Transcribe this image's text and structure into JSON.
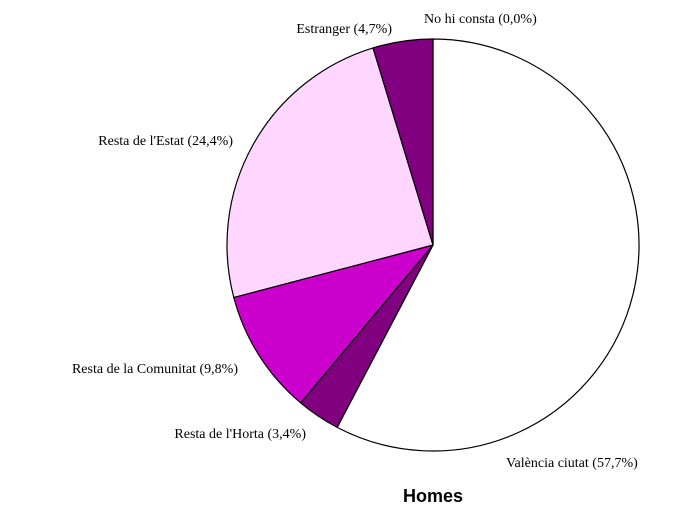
{
  "chart_data": {
    "type": "pie",
    "title": "Homes",
    "start_angle_deg": 0,
    "direction": "clockwise",
    "slices": [
      {
        "label": "València ciutat (57,7%)",
        "value": 57.7,
        "color": "#ffffff"
      },
      {
        "label": "Resta de l'Horta (3,4%)",
        "value": 3.4,
        "color": "#800080"
      },
      {
        "label": "Resta de la Comunitat (9,8%)",
        "value": 9.8,
        "color": "#cc00cc"
      },
      {
        "label": "Resta de l'Estat (24,4%)",
        "value": 24.4,
        "color": "#ffd6ff"
      },
      {
        "label": "Estranger (4,7%)",
        "value": 4.7,
        "color": "#800080"
      },
      {
        "label": "No hi consta (0,0%)",
        "value": 0.0,
        "color": "#800080"
      }
    ],
    "legend": "none"
  }
}
